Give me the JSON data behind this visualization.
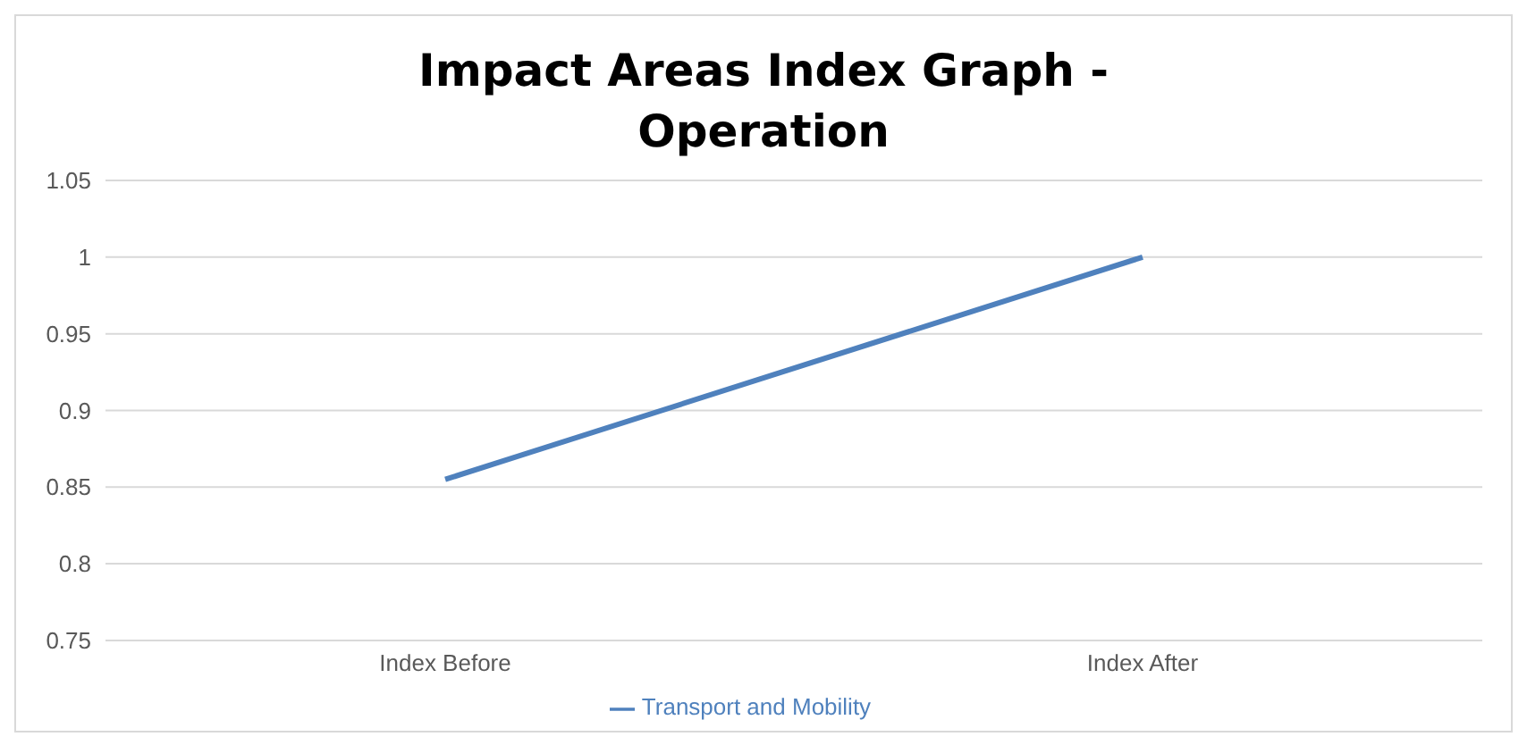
{
  "chart_data": {
    "type": "line",
    "title": "Impact Areas Index Graph - Operation",
    "categories": [
      "Index Before",
      "Index After"
    ],
    "series": [
      {
        "name": "Transport and Mobility",
        "color": "#4f81bd",
        "values": [
          0.855,
          1
        ]
      }
    ],
    "ylim": [
      0.75,
      1.05
    ],
    "yticks": [
      0.75,
      0.8,
      0.85,
      0.9,
      0.95,
      1,
      1.05
    ],
    "grid": "y",
    "legend": "bottom",
    "marker": "none",
    "line_style": "solid"
  }
}
